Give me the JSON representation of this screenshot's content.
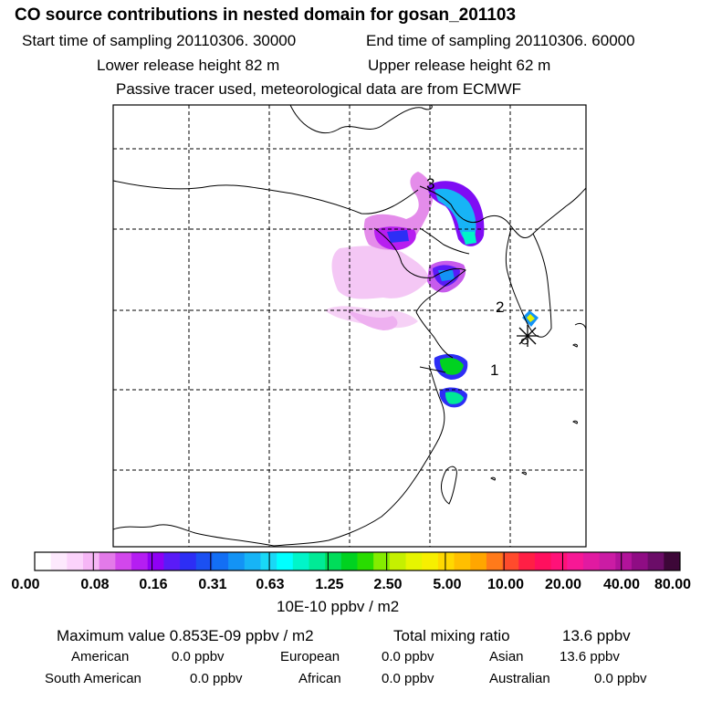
{
  "header": {
    "title": "CO  source contributions in nested domain for gosan_201103",
    "start_label": "Start time of sampling 20110306. 30000",
    "end_label": "End time of sampling 20110306. 60000",
    "lower_label": "Lower release height   82 m",
    "upper_label": "Upper release height   62 m",
    "note": "Passive tracer used, meteorological data are from ECMWF"
  },
  "map": {
    "region_labels": [
      "1",
      "2",
      "3"
    ],
    "receptor_symbol": "asterisk-icon"
  },
  "legend": {
    "colors": [
      "#ffffff",
      "#fde9fd",
      "#fbd3fb",
      "#f6b6f6",
      "#e37ae9",
      "#d247ec",
      "#b51ef2",
      "#8f00f4",
      "#5a1bf7",
      "#2d2ef5",
      "#1b50f2",
      "#136ff4",
      "#1393f5",
      "#17b4f6",
      "#19d8f6",
      "#00ffff",
      "#00f5c9",
      "#00ea96",
      "#00dd5a",
      "#00d220",
      "#29dc00",
      "#84ec00",
      "#c5f000",
      "#e6f500",
      "#f7ef00",
      "#ffd800",
      "#ffbf00",
      "#ffa600",
      "#ff7a1a",
      "#ff4b2c",
      "#ff1f45",
      "#ff0f5e",
      "#ff1178",
      "#f71895",
      "#e11aa1",
      "#cb1ca4",
      "#b1139a",
      "#8f0d84",
      "#6b0d68",
      "#3d0738"
    ],
    "tick_labels": [
      "0.00",
      "0.08",
      "0.16",
      "0.31",
      "0.63",
      "1.25",
      "2.50",
      "5.00",
      "10.00",
      "20.00",
      "40.00",
      "80.00"
    ],
    "unit": "10E-10 ppbv / m2"
  },
  "stats": {
    "max_label": "Maximum value  0.853E-09 ppbv / m2",
    "total_label": "Total mixing ratio",
    "total_value": "13.6 ppbv",
    "regions": [
      {
        "name": "American",
        "value": "0.0 ppbv"
      },
      {
        "name": "European",
        "value": "0.0 ppbv"
      },
      {
        "name": "Asian",
        "value": "13.6 ppbv"
      },
      {
        "name": "South American",
        "value": "0.0 ppbv"
      },
      {
        "name": "African",
        "value": "0.0 ppbv"
      },
      {
        "name": "Australian",
        "value": "0.0 ppbv"
      }
    ]
  }
}
